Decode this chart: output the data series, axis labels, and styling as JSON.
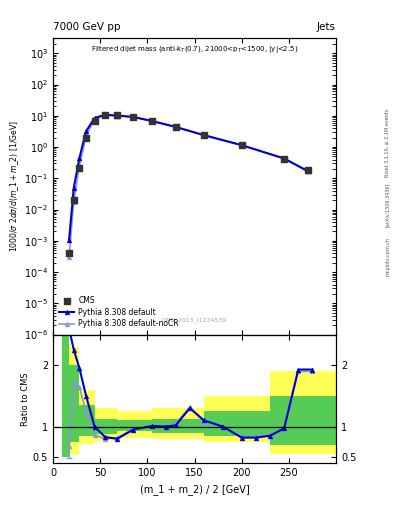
{
  "title_top": "7000 GeV pp",
  "title_right": "Jets",
  "ylabel_main": "1000/σ 2dσ/d(m_1 + m_2) [1/GeV]",
  "ylabel_ratio": "Ratio to CMS",
  "xlabel": "(m_1 + m_2) / 2 [GeV]",
  "annotation_main": "Filtered dijet mass",
  "annotation_sub": "(anti-k_{T}(0.7), 21000<p_{T}<1500, |y|<2.5)",
  "cms_watermark": "CMS_2013_I1224539",
  "rivet_label": "Rivet 3.1.10, ≥ 2.1M events",
  "arxiv_label": "[arXiv:1306.3436]",
  "mcplots_label": "mcplots.cern.ch",
  "xlim": [
    10,
    300
  ],
  "ylim_main": [
    1e-06,
    3000
  ],
  "ylim_ratio": [
    0.4,
    2.5
  ],
  "cms_x": [
    17,
    22,
    28,
    35,
    44,
    55,
    68,
    85,
    105,
    130,
    160,
    200,
    245,
    270
  ],
  "cms_y": [
    0.0004,
    0.02,
    0.22,
    2.0,
    7.0,
    11.0,
    10.5,
    9.5,
    7.0,
    4.5,
    2.5,
    1.2,
    0.42,
    0.18
  ],
  "pythia_default_x": [
    17,
    22,
    28,
    35,
    44,
    55,
    68,
    85,
    105,
    130,
    160,
    200,
    245,
    270
  ],
  "pythia_default_y": [
    0.0011,
    0.05,
    0.45,
    3.2,
    8.5,
    10.8,
    10.2,
    9.2,
    6.8,
    4.4,
    2.4,
    1.15,
    0.43,
    0.17
  ],
  "pythia_nocr_x": [
    17,
    22,
    28,
    35,
    44,
    55,
    68,
    85,
    105,
    130,
    160,
    200,
    245,
    270
  ],
  "pythia_nocr_y": [
    0.0003,
    0.018,
    0.25,
    2.3,
    7.8,
    10.5,
    10.1,
    9.1,
    6.85,
    4.42,
    2.41,
    1.16,
    0.435,
    0.172
  ],
  "ratio_x": [
    17,
    22,
    28,
    35,
    44,
    55,
    68,
    85,
    105,
    120,
    130,
    145,
    160,
    180,
    200,
    215,
    230,
    245,
    260,
    275
  ],
  "ratio_default": [
    2.6,
    2.25,
    1.95,
    1.5,
    1.0,
    0.83,
    0.8,
    0.95,
    1.01,
    1.0,
    1.02,
    1.3,
    1.1,
    1.0,
    0.82,
    0.82,
    0.85,
    0.97,
    1.93,
    1.93
  ],
  "ratio_nocr": [
    0.68,
    1.72,
    1.65,
    1.22,
    0.87,
    0.8,
    0.82,
    0.96,
    1.02,
    1.01,
    1.05,
    1.32,
    1.08,
    0.99,
    0.84,
    0.84,
    0.87,
    0.97,
    1.9,
    1.9
  ],
  "band_edges": [
    10,
    17,
    28,
    44,
    68,
    105,
    160,
    230,
    300
  ],
  "band_green_lo": [
    0.5,
    0.75,
    0.85,
    0.88,
    0.92,
    0.9,
    0.85,
    0.7,
    0.5
  ],
  "band_green_hi": [
    2.5,
    2.0,
    1.35,
    1.12,
    1.1,
    1.12,
    1.25,
    1.5,
    2.5
  ],
  "band_yellow_lo": [
    0.5,
    0.55,
    0.72,
    0.76,
    0.82,
    0.8,
    0.75,
    0.55,
    0.4
  ],
  "band_yellow_hi": [
    2.5,
    2.3,
    1.6,
    1.3,
    1.25,
    1.3,
    1.5,
    1.9,
    2.5
  ],
  "color_cms": "#333333",
  "color_default": "#0000cc",
  "color_nocr": "#8899cc",
  "color_green": "#55cc55",
  "color_yellow": "#ffff55"
}
